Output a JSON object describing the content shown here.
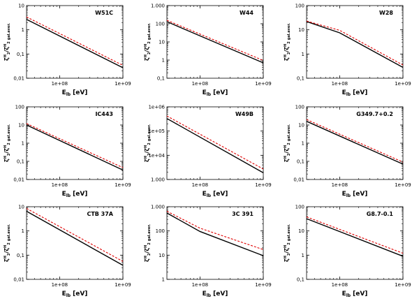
{
  "figure": {
    "panels": 9,
    "xlabel_main": "E",
    "xlabel_sub": "lb",
    "xlabel_unit": "[eV]",
    "ylabel_main": "ζ",
    "ylabel_sup": "H",
    "ylabel_sub2": "2",
    "ylabel_suffix": "gal.aver.",
    "line_colors": {
      "computed": "#000000",
      "dashed": "#e00000"
    }
  },
  "chart_data": [
    {
      "type": "line",
      "title": "W51C",
      "xscale": "log",
      "yscale": "log",
      "xlim": [
        30000000,
        1000000000
      ],
      "xticks": [
        100000000,
        1000000000
      ],
      "xticklabels": [
        "1e+08",
        "1e+09"
      ],
      "ylim": [
        0.01,
        10
      ],
      "yticks": [
        0.01,
        0.1,
        1,
        10
      ],
      "yticklabels": [
        "0,01",
        "0,1",
        "1",
        "10"
      ],
      "x": [
        30000000,
        1000000000
      ],
      "series": [
        {
          "name": "solid",
          "style": "solid",
          "color": "#000000",
          "values": [
            2.7,
            0.027
          ]
        },
        {
          "name": "dashed",
          "style": "dashed",
          "color": "#e00000",
          "values": [
            3.4,
            0.034
          ]
        }
      ]
    },
    {
      "type": "line",
      "title": "W44",
      "xscale": "log",
      "yscale": "log",
      "xlim": [
        30000000,
        1000000000
      ],
      "xticks": [
        100000000,
        1000000000
      ],
      "xticklabels": [
        "1e+08",
        "1e+09"
      ],
      "ylim": [
        0.1,
        1000
      ],
      "yticks": [
        0.1,
        1,
        10,
        100,
        1000
      ],
      "yticklabels": [
        "0,1",
        "1",
        "10",
        "100",
        "1.000"
      ],
      "x": [
        30000000,
        1000000000
      ],
      "series": [
        {
          "name": "solid",
          "style": "solid",
          "color": "#000000",
          "values": [
            130,
            0.7
          ]
        },
        {
          "name": "dashed",
          "style": "dashed",
          "color": "#e00000",
          "values": [
            155,
            0.95
          ]
        }
      ]
    },
    {
      "type": "line",
      "title": "W28",
      "xscale": "log",
      "yscale": "log",
      "xlim": [
        30000000,
        1000000000
      ],
      "xticks": [
        100000000,
        1000000000
      ],
      "xticklabels": [
        "1e+08",
        "1e+09"
      ],
      "ylim": [
        0.1,
        100
      ],
      "yticks": [
        0.1,
        1,
        10,
        100
      ],
      "yticklabels": [
        "0,1",
        "1",
        "10",
        "100"
      ],
      "x": [
        30000000,
        100000000,
        1000000000
      ],
      "series": [
        {
          "name": "solid",
          "style": "solid",
          "color": "#000000",
          "values": [
            22,
            7.5,
            0.28
          ]
        },
        {
          "name": "dashed",
          "style": "dashed",
          "color": "#e00000",
          "values": [
            23,
            9.5,
            0.35
          ]
        }
      ]
    },
    {
      "type": "line",
      "title": "IC443",
      "xscale": "log",
      "yscale": "log",
      "xlim": [
        30000000,
        1000000000
      ],
      "xticks": [
        100000000,
        1000000000
      ],
      "xticklabels": [
        "1e+08",
        "1e+09"
      ],
      "ylim": [
        0.01,
        100
      ],
      "yticks": [
        0.01,
        0.1,
        1,
        10,
        100
      ],
      "yticklabels": [
        "0,01",
        "0,1",
        "1",
        "10",
        "100"
      ],
      "x": [
        30000000,
        1000000000
      ],
      "series": [
        {
          "name": "solid",
          "style": "solid",
          "color": "#000000",
          "values": [
            10,
            0.033
          ]
        },
        {
          "name": "dashed",
          "style": "dashed",
          "color": "#e00000",
          "values": [
            12,
            0.045
          ]
        }
      ]
    },
    {
      "type": "line",
      "title": "W49B",
      "xscale": "log",
      "yscale": "log",
      "xlim": [
        30000000,
        1000000000
      ],
      "xticks": [
        100000000,
        1000000000
      ],
      "xticklabels": [
        "1e+08",
        "1e+09"
      ],
      "ylim": [
        1000,
        1000000
      ],
      "yticks": [
        1000,
        10000,
        100000,
        1000000
      ],
      "yticklabels": [
        "1.000",
        "1e+04",
        "1e+05",
        "1e+06"
      ],
      "x": [
        30000000,
        1000000000
      ],
      "series": [
        {
          "name": "solid",
          "style": "solid",
          "color": "#000000",
          "values": [
            330000,
            1900
          ]
        },
        {
          "name": "dashed",
          "style": "dashed",
          "color": "#e00000",
          "values": [
            420000,
            2700
          ]
        }
      ]
    },
    {
      "type": "line",
      "title": "G349.7+0.2",
      "xscale": "log",
      "yscale": "log",
      "xlim": [
        30000000,
        1000000000
      ],
      "xticks": [
        100000000,
        1000000000
      ],
      "xticklabels": [
        "1e+08",
        "1e+09"
      ],
      "ylim": [
        0.01,
        100
      ],
      "yticks": [
        0.01,
        0.1,
        1,
        10,
        100
      ],
      "yticklabels": [
        "0,01",
        "0,1",
        "1",
        "10",
        "100"
      ],
      "x": [
        30000000,
        1000000000
      ],
      "series": [
        {
          "name": "solid",
          "style": "solid",
          "color": "#000000",
          "values": [
            16,
            0.07
          ]
        },
        {
          "name": "dashed",
          "style": "dashed",
          "color": "#e00000",
          "values": [
            20,
            0.09
          ]
        }
      ]
    },
    {
      "type": "line",
      "title": "CTB 37A",
      "xscale": "log",
      "yscale": "log",
      "xlim": [
        30000000,
        1000000000
      ],
      "xticks": [
        100000000,
        1000000000
      ],
      "xticklabels": [
        "1e+08",
        "1e+09"
      ],
      "ylim": [
        0.01,
        10
      ],
      "yticks": [
        0.01,
        0.1,
        1,
        10
      ],
      "yticklabels": [
        "0,01",
        "0,1",
        "1",
        "10"
      ],
      "x": [
        30000000,
        1000000000
      ],
      "series": [
        {
          "name": "solid",
          "style": "solid",
          "color": "#000000",
          "values": [
            6.5,
            0.038
          ]
        },
        {
          "name": "dashed",
          "style": "dashed",
          "color": "#e00000",
          "values": [
            8.5,
            0.055
          ]
        }
      ]
    },
    {
      "type": "line",
      "title": "3C 391",
      "xscale": "log",
      "yscale": "log",
      "xlim": [
        30000000,
        1000000000
      ],
      "xticks": [
        100000000,
        1000000000
      ],
      "xticklabels": [
        "1e+08",
        "1e+09"
      ],
      "ylim": [
        1,
        1000
      ],
      "yticks": [
        1,
        10,
        100,
        1000
      ],
      "yticklabels": [
        "1",
        "10",
        "100",
        "1.000"
      ],
      "x": [
        30000000,
        100000000,
        1000000000
      ],
      "series": [
        {
          "name": "solid",
          "style": "solid",
          "color": "#000000",
          "values": [
            550,
            95,
            9.5
          ]
        },
        {
          "name": "dashed",
          "style": "dashed",
          "color": "#e00000",
          "values": [
            650,
            130,
            17
          ]
        }
      ]
    },
    {
      "type": "line",
      "title": "G8.7-0.1",
      "xscale": "log",
      "yscale": "log",
      "xlim": [
        30000000,
        1000000000
      ],
      "xticks": [
        100000000,
        1000000000
      ],
      "xticklabels": [
        "1e+08",
        "1e+09"
      ],
      "ylim": [
        0.1,
        100
      ],
      "yticks": [
        0.1,
        1,
        10,
        100
      ],
      "yticklabels": [
        "0,1",
        "1",
        "10",
        "100"
      ],
      "x": [
        30000000,
        1000000000
      ],
      "series": [
        {
          "name": "solid",
          "style": "solid",
          "color": "#000000",
          "values": [
            32,
            0.9
          ]
        },
        {
          "name": "dashed",
          "style": "dashed",
          "color": "#e00000",
          "values": [
            38,
            1.2
          ]
        }
      ]
    }
  ]
}
